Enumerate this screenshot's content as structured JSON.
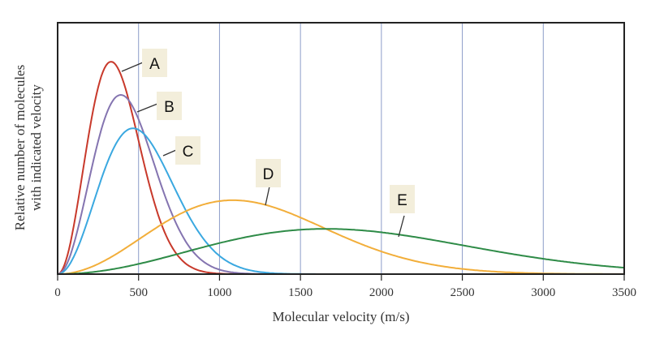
{
  "chart_data": {
    "type": "line",
    "title": "",
    "xlabel": "Molecular velocity (m/s)",
    "ylabel_lines": [
      "Relative number of molecules",
      "with indicated velocity"
    ],
    "xlim": [
      0,
      3500
    ],
    "ylim": [
      0,
      1
    ],
    "x_ticks": [
      0,
      500,
      1000,
      1500,
      2000,
      2500,
      3000,
      3500
    ],
    "x_tick_labels": [
      "0",
      "500",
      "1000",
      "1500",
      "2000",
      "2500",
      "3000",
      "3500"
    ],
    "grid": "vertical",
    "y_ticks": "none",
    "grid_color": "#8c9cc8",
    "label_box_color": "#f3eedb",
    "series": [
      {
        "name": "A",
        "color": "#c8392b",
        "peak_velocity": 330,
        "peak_height": 0.845
      },
      {
        "name": "B",
        "color": "#8474b0",
        "peak_velocity": 390,
        "peak_height": 0.713
      },
      {
        "name": "C",
        "color": "#3aa8e0",
        "peak_velocity": 466,
        "peak_height": 0.58
      },
      {
        "name": "D",
        "color": "#f2ae3a",
        "peak_velocity": 1083,
        "peak_height": 0.294
      },
      {
        "name": "E",
        "color": "#2e8b47",
        "peak_velocity": 1660,
        "peak_height": 0.18
      }
    ]
  }
}
